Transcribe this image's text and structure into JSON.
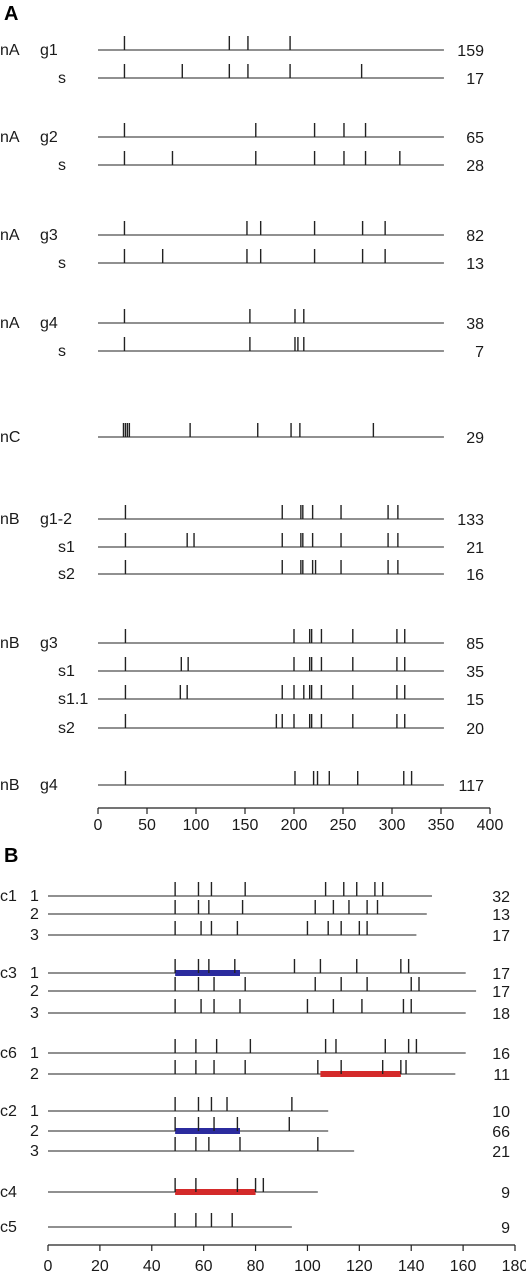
{
  "colors": {
    "line": "#222222",
    "blue": "#2b2b9e",
    "red": "#d42a2a"
  },
  "panelA": {
    "label": "A",
    "axis": {
      "min": 0,
      "max": 400,
      "ticks": [
        0,
        50,
        100,
        150,
        200,
        250,
        300,
        350,
        400
      ]
    },
    "rows": [
      {
        "group": "nA",
        "name": "g1",
        "end": 353,
        "count": "159",
        "marks": [
          27,
          134,
          153,
          196
        ]
      },
      {
        "group": "",
        "name": "s",
        "end": 353,
        "count": "17",
        "marks": [
          27,
          86,
          134,
          153,
          196,
          269
        ]
      },
      {
        "group": "nA",
        "name": "g2",
        "end": 353,
        "count": "65",
        "marks": [
          27,
          161,
          221,
          251,
          273
        ]
      },
      {
        "group": "",
        "name": "s",
        "end": 353,
        "count": "28",
        "marks": [
          27,
          76,
          161,
          221,
          251,
          273,
          308
        ]
      },
      {
        "group": "nA",
        "name": "g3",
        "end": 353,
        "count": "82",
        "marks": [
          27,
          152,
          166,
          221,
          270,
          293
        ]
      },
      {
        "group": "",
        "name": "s",
        "end": 353,
        "count": "13",
        "marks": [
          27,
          66,
          152,
          166,
          221,
          270,
          293
        ]
      },
      {
        "group": "nA",
        "name": "g4",
        "end": 353,
        "count": "38",
        "marks": [
          27,
          155,
          201,
          210
        ]
      },
      {
        "group": "",
        "name": "s",
        "end": 353,
        "count": "7",
        "marks": [
          27,
          155,
          201,
          204,
          210
        ]
      },
      {
        "group": "nC",
        "name": "",
        "end": 353,
        "count": "29",
        "marks": [
          26,
          28,
          30,
          32,
          94,
          163,
          197,
          206,
          281
        ]
      },
      {
        "group": "nB",
        "name": "g1-2",
        "end": 353,
        "count": "133",
        "marks": [
          28,
          188,
          207,
          209,
          219,
          248,
          296,
          306
        ]
      },
      {
        "group": "",
        "name": "s1",
        "end": 353,
        "count": "21",
        "marks": [
          28,
          91,
          98,
          188,
          207,
          209,
          219,
          248,
          296,
          306
        ]
      },
      {
        "group": "",
        "name": "s2",
        "end": 353,
        "count": "16",
        "marks": [
          28,
          188,
          207,
          209,
          219,
          222,
          248,
          296,
          306
        ]
      },
      {
        "group": "nB",
        "name": "g3",
        "end": 353,
        "count": "85",
        "marks": [
          28,
          200,
          216,
          218,
          228,
          260,
          305,
          313
        ]
      },
      {
        "group": "",
        "name": "s1",
        "end": 353,
        "count": "35",
        "marks": [
          28,
          85,
          92,
          200,
          216,
          218,
          228,
          260,
          305,
          313
        ]
      },
      {
        "group": "",
        "name": "s1.1",
        "end": 353,
        "count": "15",
        "marks": [
          28,
          84,
          91,
          188,
          200,
          210,
          216,
          218,
          228,
          260,
          305,
          313
        ]
      },
      {
        "group": "",
        "name": "s2",
        "end": 353,
        "count": "20",
        "marks": [
          28,
          182,
          188,
          200,
          216,
          218,
          228,
          260,
          305,
          313
        ]
      },
      {
        "group": "nB",
        "name": "g4",
        "end": 353,
        "count": "117",
        "marks": [
          28,
          201,
          220,
          224,
          236,
          265,
          312,
          320
        ]
      }
    ]
  },
  "panelB": {
    "label": "B",
    "axis": {
      "min": 0,
      "max": 180,
      "ticks": [
        0,
        20,
        40,
        60,
        80,
        100,
        120,
        140,
        160,
        180
      ]
    },
    "rows": [
      {
        "group": "c1",
        "name": "1",
        "end": 148,
        "count": "32",
        "marks": [
          49,
          58,
          63,
          76,
          107,
          114,
          119,
          126,
          129
        ]
      },
      {
        "group": "",
        "name": "2",
        "end": 146,
        "count": "13",
        "marks": [
          49,
          58,
          62,
          75,
          103,
          110,
          116,
          123,
          127
        ]
      },
      {
        "group": "",
        "name": "3",
        "end": 142,
        "count": "17",
        "marks": [
          49,
          59,
          63,
          73,
          100,
          108,
          113,
          120,
          123
        ]
      },
      {
        "group": "c3",
        "name": "1",
        "end": 161,
        "count": "17",
        "marks": [
          49,
          58,
          62,
          72,
          95,
          105,
          119,
          136,
          139
        ],
        "bar": {
          "from": 49,
          "to": 74,
          "color": "blue"
        }
      },
      {
        "group": "",
        "name": "2",
        "end": 165,
        "count": "17",
        "marks": [
          49,
          58,
          64,
          76,
          103,
          113,
          123,
          140,
          143
        ]
      },
      {
        "group": "",
        "name": "3",
        "end": 161,
        "count": "18",
        "marks": [
          49,
          59,
          64,
          74,
          100,
          110,
          121,
          137,
          140
        ]
      },
      {
        "group": "c6",
        "name": "1",
        "end": 161,
        "count": "16",
        "marks": [
          49,
          57,
          65,
          78,
          107,
          111,
          130,
          139,
          142
        ]
      },
      {
        "group": "",
        "name": "2",
        "end": 157,
        "count": "11",
        "marks": [
          49,
          57,
          64,
          76,
          104,
          113,
          129,
          136,
          138
        ],
        "bar": {
          "from": 105,
          "to": 136,
          "color": "red"
        }
      },
      {
        "group": "c2",
        "name": "1",
        "end": 108,
        "count": "10",
        "marks": [
          49,
          58,
          63,
          69,
          94
        ]
      },
      {
        "group": "",
        "name": "2",
        "end": 108,
        "count": "66",
        "marks": [
          49,
          58,
          64,
          73,
          93
        ],
        "bar": {
          "from": 49,
          "to": 74,
          "color": "blue"
        }
      },
      {
        "group": "",
        "name": "3",
        "end": 118,
        "count": "21",
        "marks": [
          49,
          57,
          62,
          74,
          104
        ]
      },
      {
        "group": "c4",
        "name": "",
        "end": 104,
        "count": "9",
        "marks": [
          49,
          57,
          73,
          80,
          83
        ],
        "bar": {
          "from": 49,
          "to": 80,
          "color": "red"
        }
      },
      {
        "group": "c5",
        "name": "",
        "end": 94,
        "count": "9",
        "marks": [
          49,
          57,
          63,
          71
        ]
      }
    ]
  }
}
